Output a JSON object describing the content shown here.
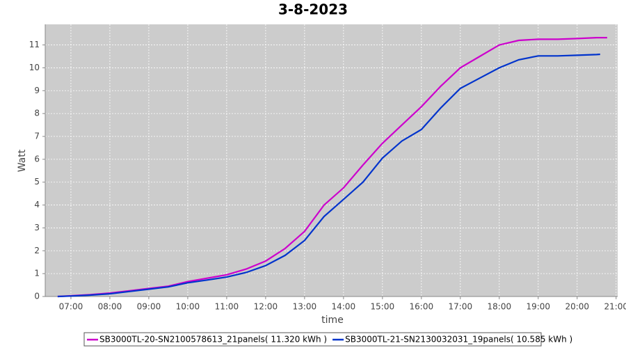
{
  "chart_data": {
    "type": "line",
    "title": "3-8-2023",
    "x_label": "time",
    "y_label": "Watt",
    "xlim": [
      6.34,
      21.04
    ],
    "xticks": [
      {
        "value": 7,
        "label": "07:00"
      },
      {
        "value": 8,
        "label": "08:00"
      },
      {
        "value": 9,
        "label": "09:00"
      },
      {
        "value": 10,
        "label": "10:00"
      },
      {
        "value": 11,
        "label": "11:00"
      },
      {
        "value": 12,
        "label": "12:00"
      },
      {
        "value": 13,
        "label": "13:00"
      },
      {
        "value": 14,
        "label": "14:00"
      },
      {
        "value": 15,
        "label": "15:00"
      },
      {
        "value": 16,
        "label": "16:00"
      },
      {
        "value": 17,
        "label": "17:00"
      },
      {
        "value": 18,
        "label": "18:00"
      },
      {
        "value": 19,
        "label": "19:00"
      },
      {
        "value": 20,
        "label": "20:00"
      },
      {
        "value": 21,
        "label": "21:00"
      }
    ],
    "ylim": [
      0,
      11.9
    ],
    "yticks": [
      0,
      1,
      2,
      3,
      4,
      5,
      6,
      7,
      8,
      9,
      10,
      11
    ],
    "grid": true,
    "series": [
      {
        "name": "SB3000TL-20-SN2100578613_21panels( 11.320 kWh )",
        "color": "#cc00cc",
        "x": [
          6.66,
          7,
          7.5,
          8,
          8.5,
          9,
          9.5,
          10,
          10.5,
          11,
          11.5,
          12,
          12.5,
          13,
          13.5,
          14,
          14.5,
          15,
          15.5,
          16,
          16.5,
          17,
          17.5,
          18,
          18.5,
          19,
          19.5,
          20,
          20.5,
          20.77
        ],
        "values": [
          0.0,
          0.03,
          0.08,
          0.15,
          0.25,
          0.35,
          0.45,
          0.65,
          0.8,
          0.95,
          1.2,
          1.55,
          2.1,
          2.85,
          4.0,
          4.75,
          5.75,
          6.7,
          7.5,
          8.3,
          9.2,
          10.0,
          10.5,
          11.0,
          11.2,
          11.25,
          11.25,
          11.28,
          11.32,
          11.32
        ]
      },
      {
        "name": "SB3000TL-21-SN2130032031_19panels( 10.585 kWh )",
        "color": "#0033cc",
        "x": [
          6.66,
          7,
          7.5,
          8,
          8.5,
          9,
          9.5,
          10,
          10.5,
          11,
          11.5,
          12,
          12.5,
          13,
          13.5,
          14,
          14.5,
          15,
          15.5,
          16,
          16.5,
          17,
          17.5,
          18,
          18.5,
          19,
          19.5,
          20,
          20.5,
          20.59
        ],
        "values": [
          0.0,
          0.02,
          0.06,
          0.12,
          0.22,
          0.32,
          0.42,
          0.6,
          0.72,
          0.85,
          1.05,
          1.35,
          1.8,
          2.45,
          3.5,
          4.25,
          5.0,
          6.05,
          6.8,
          7.3,
          8.25,
          9.1,
          9.55,
          10.0,
          10.35,
          10.52,
          10.52,
          10.55,
          10.58,
          10.59
        ]
      }
    ]
  }
}
